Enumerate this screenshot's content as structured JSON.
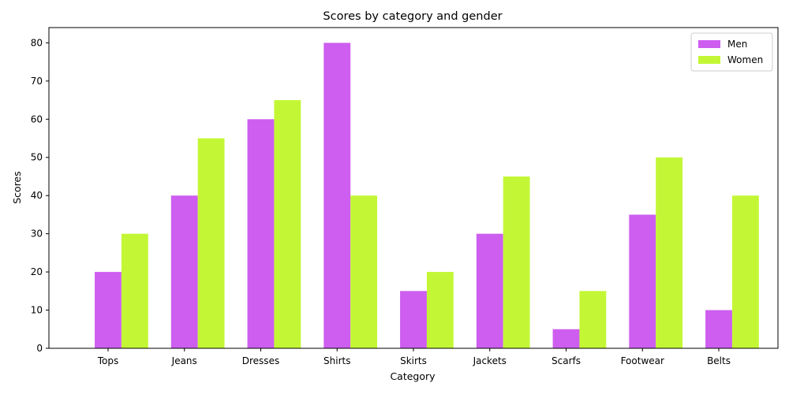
{
  "chart_data": {
    "type": "bar",
    "title": "Scores by category and gender",
    "xlabel": "Category",
    "ylabel": "Scores",
    "categories": [
      "Tops",
      "Jeans",
      "Dresses",
      "Shirts",
      "Skirts",
      "Jackets",
      "Scarfs",
      "Footwear",
      "Belts"
    ],
    "series": [
      {
        "name": "Men",
        "color": "#cd5ef0",
        "values": [
          20,
          40,
          60,
          80,
          15,
          30,
          5,
          35,
          10
        ]
      },
      {
        "name": "Women",
        "color": "#c3f735",
        "values": [
          30,
          55,
          65,
          40,
          20,
          45,
          15,
          50,
          40
        ]
      }
    ],
    "ylim": [
      0,
      84
    ],
    "yticks": [
      0,
      10,
      20,
      30,
      40,
      50,
      60,
      70,
      80
    ],
    "grid": false,
    "legend_position": "top-right"
  }
}
